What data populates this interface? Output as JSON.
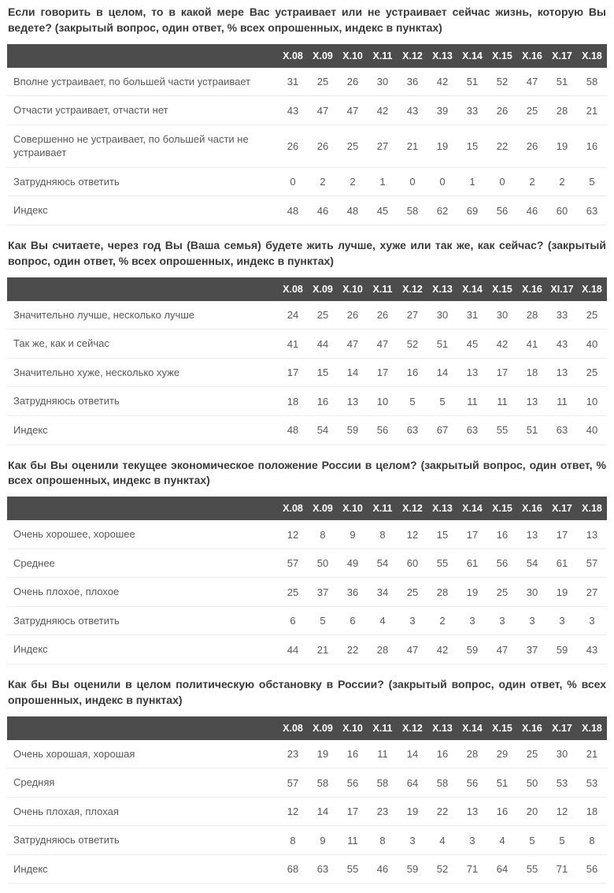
{
  "colors": {
    "header_bg": "#4c4c4c",
    "header_text": "#ffffff",
    "body_text": "#58585a",
    "title_text": "#3a3a3a",
    "row_divider": "#ececec"
  },
  "sections": [
    {
      "question": "Если говорить в целом, то в какой мере Вас устраивает или не устраивает сейчас жизнь, которую Вы ведете? (закрытый вопрос, один ответ, % всех опрошенных, индекс в пунктах)",
      "columns": [
        "Х.08",
        "Х.09",
        "Х.10",
        "Х.11",
        "Х.12",
        "Х.13",
        "Х.14",
        "Х.15",
        "Х.16",
        "Х.17",
        "Х.18"
      ],
      "rows": [
        {
          "label": "Вполне устраивает, по большей части устраивает",
          "values": [
            31,
            25,
            26,
            30,
            36,
            42,
            51,
            52,
            47,
            51,
            58
          ]
        },
        {
          "label": "Отчасти устраивает, отчасти нет",
          "values": [
            43,
            47,
            47,
            42,
            43,
            39,
            33,
            26,
            25,
            28,
            21
          ]
        },
        {
          "label": "Совершенно не устраивает, по большей части не устраивает",
          "values": [
            26,
            26,
            25,
            27,
            21,
            19,
            15,
            22,
            26,
            19,
            16
          ]
        },
        {
          "label": "Затрудняюсь ответить",
          "values": [
            0,
            2,
            2,
            1,
            0,
            0,
            1,
            0,
            2,
            2,
            5
          ]
        },
        {
          "label": "Индекс",
          "values": [
            48,
            46,
            48,
            45,
            58,
            62,
            69,
            56,
            46,
            60,
            63
          ]
        }
      ]
    },
    {
      "question": "Как Вы считаете, через год Вы (Ваша семья) будете жить лучше, хуже или так же, как сейчас? (закрытый вопрос, один ответ, % всех опрошенных, индекс в пунктах)",
      "columns": [
        "Х.08",
        "Х.09",
        "Х.10",
        "Х.11",
        "Х.12",
        "Х.13",
        "Х.14",
        "Х.15",
        "Х.16",
        "ХI.17",
        "Х.18"
      ],
      "rows": [
        {
          "label": "Значительно лучше, несколько лучше",
          "values": [
            24,
            25,
            26,
            26,
            27,
            30,
            31,
            30,
            28,
            33,
            25
          ]
        },
        {
          "label": "Так же, как и сейчас",
          "values": [
            41,
            44,
            47,
            47,
            52,
            51,
            45,
            42,
            41,
            43,
            40
          ]
        },
        {
          "label": "Значительно хуже, несколько хуже",
          "values": [
            17,
            15,
            14,
            17,
            16,
            14,
            13,
            17,
            18,
            13,
            25
          ]
        },
        {
          "label": "Затрудняюсь ответить",
          "values": [
            18,
            16,
            13,
            10,
            5,
            5,
            11,
            11,
            13,
            11,
            10
          ]
        },
        {
          "label": "Индекс",
          "values": [
            48,
            54,
            59,
            56,
            63,
            67,
            63,
            55,
            51,
            63,
            40
          ]
        }
      ]
    },
    {
      "question": "Как бы Вы оценили текущее экономическое положение России в целом? (закрытый вопрос, один ответ, % всех опрошенных, индекс в пунктах)",
      "columns": [
        "Х.08",
        "Х.09",
        "Х.10",
        "Х.11",
        "Х.12",
        "Х.13",
        "Х.14",
        "Х.15",
        "Х.16",
        "Х.17",
        "Х.18"
      ],
      "rows": [
        {
          "label": "Очень хорошее, хорошее",
          "values": [
            12,
            8,
            9,
            8,
            12,
            15,
            17,
            16,
            13,
            17,
            13
          ]
        },
        {
          "label": "Среднее",
          "values": [
            57,
            50,
            49,
            54,
            60,
            55,
            61,
            56,
            54,
            61,
            57
          ]
        },
        {
          "label": "Очень плохое, плохое",
          "values": [
            25,
            37,
            36,
            34,
            25,
            28,
            19,
            25,
            30,
            19,
            27
          ]
        },
        {
          "label": "Затрудняюсь ответить",
          "values": [
            6,
            5,
            6,
            4,
            3,
            2,
            3,
            3,
            3,
            3,
            3
          ]
        },
        {
          "label": "Индекс",
          "values": [
            44,
            21,
            22,
            28,
            47,
            42,
            59,
            47,
            37,
            59,
            43
          ]
        }
      ]
    },
    {
      "question": "Как бы Вы оценили в целом политическую обстановку в России? (закрытый вопрос, один ответ, % всех опрошенных, индекс в пунктах)",
      "columns": [
        "Х.08",
        "Х.09",
        "Х.10",
        "Х.11",
        "Х.12",
        "Х.13",
        "Х.14",
        "Х.15",
        "Х.16",
        "Х.17",
        "Х.18"
      ],
      "rows": [
        {
          "label": "Очень хорошая, хорошая",
          "values": [
            23,
            19,
            16,
            11,
            14,
            16,
            28,
            29,
            25,
            30,
            21
          ]
        },
        {
          "label": "Средняя",
          "values": [
            57,
            58,
            56,
            58,
            64,
            58,
            56,
            51,
            50,
            53,
            53
          ]
        },
        {
          "label": "Очень плохая, плохая",
          "values": [
            12,
            14,
            17,
            23,
            19,
            22,
            13,
            16,
            20,
            12,
            18
          ]
        },
        {
          "label": "Затрудняюсь ответить",
          "values": [
            8,
            9,
            11,
            8,
            3,
            4,
            3,
            4,
            5,
            5,
            8
          ]
        },
        {
          "label": "Индекс",
          "values": [
            68,
            63,
            55,
            46,
            59,
            52,
            71,
            64,
            55,
            71,
            56
          ]
        }
      ]
    }
  ]
}
